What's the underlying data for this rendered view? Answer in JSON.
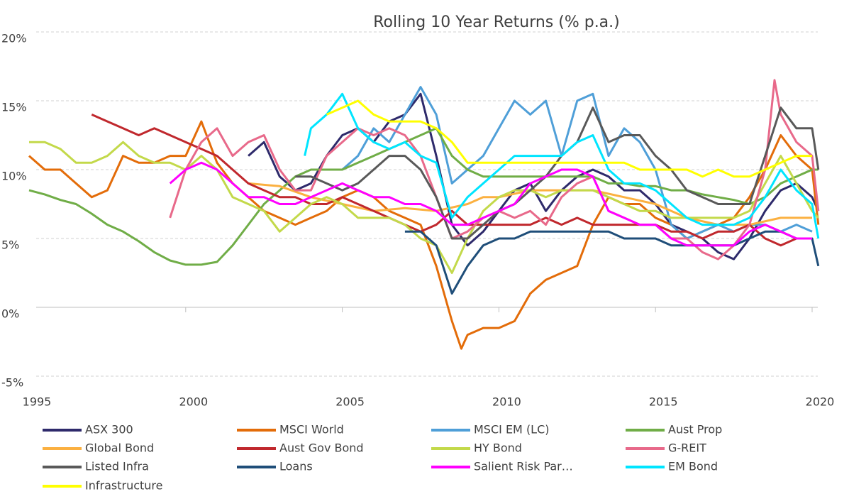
{
  "chart_data": {
    "type": "line",
    "title": "Rolling 10 Year Returns (% p.a.)",
    "xlim": [
      1995,
      2020
    ],
    "xticks": [
      1995,
      2000,
      2005,
      2010,
      2015,
      2020
    ],
    "ylim": [
      -5,
      20
    ],
    "yticks": [
      {
        "value": -5,
        "label": "-5%"
      },
      {
        "value": 0,
        "label": "0%"
      },
      {
        "value": 5,
        "label": "5%"
      },
      {
        "value": 10,
        "label": "10%"
      },
      {
        "value": 15,
        "label": "15%"
      },
      {
        "value": 20,
        "label": "20%"
      }
    ],
    "grid": true,
    "legend": "bottom",
    "series": [
      {
        "name": "ASX 300",
        "color": "#2e2a6b",
        "x": [
          2002,
          2002.5,
          2003,
          2003.5,
          2004,
          2004.5,
          2005,
          2005.5,
          2006,
          2006.5,
          2007,
          2007.5,
          2008,
          2008.5,
          2009,
          2009.5,
          2010,
          2010.5,
          2011,
          2011.5,
          2012,
          2012.5,
          2013,
          2013.5,
          2014,
          2014.5,
          2015,
          2015.5,
          2016,
          2016.5,
          2017,
          2017.5,
          2018,
          2018.5,
          2019,
          2019.5,
          2020,
          2020.2
        ],
        "values": [
          11,
          12,
          9.5,
          8.5,
          9,
          11,
          12.5,
          13,
          12,
          13.5,
          14,
          15.5,
          11,
          6,
          4.5,
          5.5,
          7,
          8.5,
          9,
          7,
          8.5,
          9.5,
          10,
          9.5,
          8.5,
          8.5,
          7.5,
          6,
          5.5,
          5,
          4,
          3.5,
          5,
          7,
          8.5,
          9,
          8,
          7
        ]
      },
      {
        "name": "MSCI World",
        "color": "#e36c09",
        "x": [
          1995,
          1995.5,
          1996,
          1996.5,
          1997,
          1997.5,
          1998,
          1998.5,
          1999,
          1999.5,
          2000,
          2000.5,
          2001,
          2001.5,
          2002,
          2002.5,
          2003,
          2003.5,
          2004,
          2004.5,
          2005,
          2005.5,
          2006,
          2006.5,
          2007,
          2007.5,
          2008,
          2008.5,
          2008.8,
          2009,
          2009.5,
          2010,
          2010.5,
          2011,
          2011.5,
          2012,
          2012.5,
          2013,
          2013.5,
          2014,
          2014.5,
          2015,
          2015.5,
          2016,
          2016.5,
          2017,
          2017.5,
          2018,
          2018.5,
          2019,
          2019.5,
          2020,
          2020.2
        ],
        "values": [
          11,
          10,
          10,
          9,
          8,
          8.5,
          11,
          10.5,
          10.5,
          11,
          11,
          13.5,
          10.5,
          9,
          8,
          7,
          6.5,
          6,
          6.5,
          7,
          8,
          8.5,
          8,
          7,
          6.5,
          6,
          3,
          -1,
          -3,
          -2,
          -1.5,
          -1.5,
          -1,
          1,
          2,
          2.5,
          3,
          6,
          8,
          7.5,
          7.5,
          6.5,
          6,
          5,
          5.5,
          6,
          6.5,
          8,
          10,
          12.5,
          11,
          10,
          6
        ]
      },
      {
        "name": "MSCI EM (LC)",
        "color": "#4f9fd8",
        "x": [
          2005,
          2005.5,
          2006,
          2006.5,
          2007,
          2007.5,
          2008,
          2008.5,
          2009,
          2009.5,
          2010,
          2010.5,
          2011,
          2011.5,
          2012,
          2012.5,
          2013,
          2013.5,
          2014,
          2014.5,
          2015,
          2015.5,
          2016,
          2016.5,
          2017,
          2017.5,
          2018,
          2018.5,
          2019,
          2019.5,
          2020
        ],
        "values": [
          10,
          11,
          13,
          12,
          14,
          16,
          14,
          9,
          10,
          11,
          13,
          15,
          14,
          15,
          11,
          15,
          15.5,
          11,
          13,
          12,
          10,
          6,
          5,
          5.5,
          6,
          5.5,
          6,
          6,
          5.5,
          6,
          5.5
        ]
      },
      {
        "name": "Aust Prop",
        "color": "#70ad47",
        "x": [
          1995,
          1995.5,
          1996,
          1996.5,
          1997,
          1997.5,
          1998,
          1998.5,
          1999,
          1999.5,
          2000,
          2000.5,
          2001,
          2001.5,
          2002,
          2002.5,
          2003,
          2003.5,
          2004,
          2004.5,
          2005,
          2005.5,
          2006,
          2006.5,
          2007,
          2007.5,
          2008,
          2008.5,
          2009,
          2009.5,
          2010,
          2010.5,
          2011,
          2011.5,
          2012,
          2012.5,
          2013,
          2013.5,
          2014,
          2014.5,
          2015,
          2015.5,
          2016,
          2016.5,
          2017,
          2017.5,
          2018,
          2018.5,
          2019,
          2019.5,
          2020,
          2020.2
        ],
        "values": [
          8.5,
          8.2,
          7.8,
          7.5,
          6.8,
          6,
          5.5,
          4.8,
          4,
          3.4,
          3.1,
          3.1,
          3.3,
          4.5,
          6,
          7.5,
          8.5,
          9.5,
          10,
          10,
          10,
          10.5,
          11,
          11.5,
          12,
          12.5,
          13,
          11,
          10,
          9.5,
          9.5,
          9.5,
          9.5,
          9.5,
          9.5,
          9.5,
          9.5,
          9,
          9,
          8.8,
          8.8,
          8.5,
          8.5,
          8.2,
          8,
          7.8,
          7.5,
          8,
          9,
          9.5,
          10,
          10
        ]
      },
      {
        "name": "Global Bond",
        "color": "#fbb040",
        "x": [
          2002,
          2003,
          2004,
          2005,
          2006,
          2007,
          2008,
          2009,
          2009.5,
          2010,
          2011,
          2012,
          2013,
          2014,
          2015,
          2016,
          2017,
          2018,
          2019,
          2020
        ],
        "values": [
          9,
          8.8,
          8,
          7.5,
          7,
          7.2,
          7,
          7.5,
          8,
          8,
          8.5,
          8.5,
          8.5,
          8,
          7.5,
          6.5,
          6,
          6,
          6.5,
          6.5
        ]
      },
      {
        "name": "Aust Gov Bond",
        "color": "#c0282d",
        "x": [
          1997,
          1997.5,
          1998,
          1998.5,
          1999,
          1999.5,
          2000,
          2000.5,
          2001,
          2001.5,
          2002,
          2002.5,
          2003,
          2003.5,
          2004,
          2004.5,
          2005,
          2005.5,
          2006,
          2006.5,
          2007,
          2007.5,
          2008,
          2008.5,
          2009,
          2009.5,
          2010,
          2010.5,
          2011,
          2011.5,
          2012,
          2012.5,
          2013,
          2013.5,
          2014,
          2014.5,
          2015,
          2015.5,
          2016,
          2016.5,
          2017,
          2017.5,
          2018,
          2018.5,
          2019,
          2019.5,
          2020
        ],
        "values": [
          14,
          13.5,
          13,
          12.5,
          13,
          12.5,
          12,
          11.5,
          11,
          10,
          9,
          8.5,
          8,
          8,
          7.5,
          7.5,
          8,
          7.5,
          7,
          6.5,
          6,
          5.5,
          6,
          7,
          6,
          6,
          6,
          6,
          6,
          6.5,
          6,
          6.5,
          6,
          6,
          6,
          6,
          6,
          5.5,
          5.5,
          5,
          5.5,
          5.5,
          6,
          5,
          4.5,
          5,
          5
        ]
      },
      {
        "name": "HY Bond",
        "color": "#c3d94a",
        "x": [
          1995,
          1995.5,
          1996,
          1996.5,
          1997,
          1997.5,
          1998,
          1998.5,
          1999,
          1999.5,
          2000,
          2000.5,
          2001,
          2001.5,
          2002,
          2002.5,
          2003,
          2003.5,
          2004,
          2004.5,
          2005,
          2005.5,
          2006,
          2006.5,
          2007,
          2007.5,
          2008,
          2008.5,
          2009,
          2009.5,
          2010,
          2010.5,
          2011,
          2011.5,
          2012,
          2012.5,
          2013,
          2013.5,
          2014,
          2014.5,
          2015,
          2015.5,
          2016,
          2016.5,
          2017,
          2017.5,
          2018,
          2018.5,
          2019,
          2019.5,
          2020,
          2020.2
        ],
        "values": [
          12,
          12,
          11.5,
          10.5,
          10.5,
          11,
          12,
          11,
          10.5,
          10.5,
          10,
          11,
          10,
          8,
          7.5,
          7,
          5.5,
          6.5,
          7.5,
          8,
          7.5,
          6.5,
          6.5,
          6.5,
          6,
          5,
          4.5,
          2.5,
          5,
          7,
          8,
          8.5,
          8.5,
          8,
          8.5,
          8.5,
          8.5,
          8,
          7.5,
          7,
          7,
          6.5,
          6.5,
          6.5,
          6.5,
          6.5,
          7,
          9,
          11,
          9,
          7,
          6.5
        ]
      },
      {
        "name": "G-REIT",
        "color": "#e8698a",
        "x": [
          1999.5,
          2000,
          2000.5,
          2001,
          2001.5,
          2002,
          2002.5,
          2003,
          2003.5,
          2004,
          2004.5,
          2005,
          2005.5,
          2006,
          2006.5,
          2007,
          2007.5,
          2008,
          2008.5,
          2009,
          2009.5,
          2010,
          2010.5,
          2011,
          2011.5,
          2012,
          2012.5,
          2013,
          2013.5,
          2014,
          2014.5,
          2015,
          2015.5,
          2016,
          2016.5,
          2017,
          2017.5,
          2018,
          2018.5,
          2018.8,
          2019,
          2019.5,
          2020,
          2020.2
        ],
        "values": [
          6.5,
          10,
          12,
          13,
          11,
          12,
          12.5,
          10,
          8.5,
          8.5,
          11,
          12,
          13,
          12.5,
          13,
          12.5,
          11,
          8,
          5,
          5.5,
          6.5,
          7,
          6.5,
          7,
          6,
          8,
          9,
          9.5,
          7,
          6.5,
          6,
          6,
          5,
          5,
          4,
          3.5,
          4.5,
          6,
          10,
          16.5,
          14,
          12,
          11,
          7
        ]
      },
      {
        "name": "Listed Infra",
        "color": "#595959",
        "x": [
          2003.5,
          2004,
          2004.5,
          2005,
          2005.5,
          2006,
          2006.5,
          2007,
          2007.5,
          2008,
          2008.5,
          2009,
          2009.5,
          2010,
          2010.5,
          2011,
          2011.5,
          2012,
          2012.5,
          2013,
          2013.5,
          2014,
          2014.5,
          2015,
          2015.5,
          2016,
          2016.5,
          2017,
          2017.5,
          2018,
          2018.5,
          2019,
          2019.5,
          2020,
          2020.2
        ],
        "values": [
          9.5,
          9.5,
          9,
          8.5,
          9,
          10,
          11,
          11,
          10,
          8,
          5,
          5,
          6,
          7,
          7.5,
          8.5,
          9.5,
          11,
          12,
          14.5,
          12,
          12.5,
          12.5,
          11,
          10,
          8.5,
          8,
          7.5,
          7.5,
          7.5,
          11,
          14.5,
          13,
          13,
          10
        ]
      },
      {
        "name": "Loans",
        "color": "#1f4e79",
        "x": [
          2007,
          2007.5,
          2008,
          2008.5,
          2009,
          2009.5,
          2010,
          2010.5,
          2011,
          2011.5,
          2012,
          2012.5,
          2013,
          2013.5,
          2014,
          2014.5,
          2015,
          2015.5,
          2016,
          2016.5,
          2017,
          2017.5,
          2018,
          2018.5,
          2019,
          2019.5,
          2020,
          2020.2
        ],
        "values": [
          5.5,
          5.5,
          4.5,
          1,
          3,
          4.5,
          5,
          5,
          5.5,
          5.5,
          5.5,
          5.5,
          5.5,
          5.5,
          5,
          5,
          5,
          4.5,
          4.5,
          4.5,
          4.5,
          4.5,
          5,
          5.5,
          5.5,
          5,
          5,
          3
        ]
      },
      {
        "name": "Salient Risk Par…",
        "color": "#ff00ff",
        "x": [
          1999.5,
          2000,
          2000.5,
          2001,
          2001.5,
          2002,
          2002.5,
          2003,
          2003.5,
          2004,
          2004.5,
          2005,
          2005.5,
          2006,
          2006.5,
          2007,
          2007.5,
          2008,
          2008.5,
          2009,
          2009.5,
          2010,
          2010.5,
          2011,
          2011.5,
          2012,
          2012.5,
          2013,
          2013.5,
          2014,
          2014.5,
          2015,
          2015.5,
          2016,
          2016.5,
          2017,
          2017.5,
          2018,
          2018.5,
          2019,
          2019.5,
          2020
        ],
        "values": [
          9,
          10,
          10.5,
          10,
          9,
          8,
          8,
          7.5,
          7.5,
          8,
          8.5,
          9,
          8.5,
          8,
          8,
          7.5,
          7.5,
          7,
          6,
          6,
          6.5,
          7,
          7.5,
          9,
          9.5,
          10,
          10,
          9.5,
          7,
          6.5,
          6,
          6,
          5,
          4.5,
          4.5,
          4.5,
          4.5,
          5.5,
          6,
          5.5,
          5,
          5
        ]
      },
      {
        "name": "EM Bond",
        "color": "#00e5ff",
        "x": [
          2003.8,
          2004,
          2004.5,
          2005,
          2005.5,
          2006,
          2006.5,
          2007,
          2007.5,
          2008,
          2008.5,
          2009,
          2009.5,
          2010,
          2010.5,
          2011,
          2011.5,
          2012,
          2012.5,
          2013,
          2013.5,
          2014,
          2014.5,
          2015,
          2015.5,
          2016,
          2016.5,
          2017,
          2017.5,
          2018,
          2018.5,
          2019,
          2019.5,
          2020,
          2020.2
        ],
        "values": [
          11,
          13,
          14,
          15.5,
          13,
          12,
          11.5,
          12,
          11,
          10.5,
          6.5,
          8,
          9,
          10,
          11,
          11,
          11,
          11,
          12,
          12.5,
          10,
          9,
          9,
          8.5,
          7.5,
          6.5,
          6,
          6,
          6,
          6.5,
          8,
          10,
          8.5,
          7.5,
          5
        ]
      },
      {
        "name": "Infrastructure",
        "color": "#ffff00",
        "x": [
          2004.5,
          2005,
          2005.5,
          2006,
          2006.5,
          2007,
          2007.5,
          2008,
          2008.5,
          2009,
          2009.5,
          2010,
          2010.5,
          2011,
          2011.5,
          2012,
          2012.5,
          2013,
          2013.5,
          2014,
          2014.5,
          2015,
          2015.5,
          2016,
          2016.5,
          2017,
          2017.5,
          2018,
          2018.5,
          2019,
          2019.5,
          2020
        ],
        "values": [
          14,
          14.5,
          15,
          14,
          13.5,
          13.5,
          13.5,
          13,
          12,
          10.5,
          10.5,
          10.5,
          10.5,
          10.5,
          10.5,
          10.5,
          10.5,
          10.5,
          10.5,
          10.5,
          10,
          10,
          10,
          10,
          9.5,
          10,
          9.5,
          9.5,
          10,
          10.5,
          11,
          11
        ]
      }
    ]
  }
}
